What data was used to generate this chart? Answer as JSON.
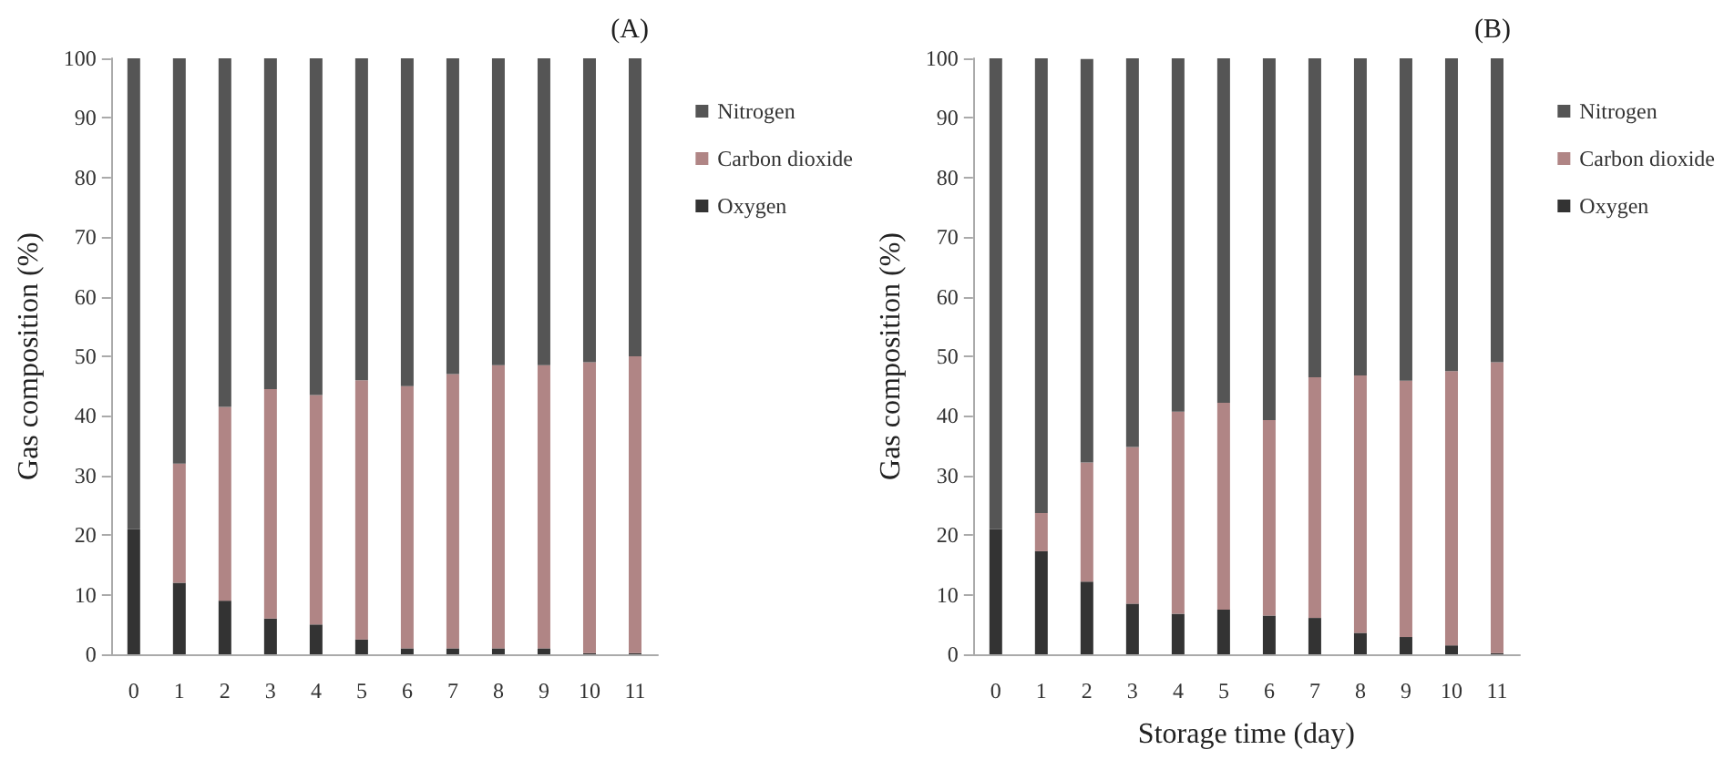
{
  "chart_data": [
    {
      "type": "bar",
      "title": "(A)",
      "ylabel": "Gas composition (%)",
      "categories": [
        "0",
        "1",
        "2",
        "3",
        "4",
        "5",
        "6",
        "7",
        "8",
        "9",
        "10",
        "11"
      ],
      "stacked": true,
      "ylim": [
        0,
        100
      ],
      "yticks": [
        0,
        10,
        20,
        30,
        40,
        50,
        60,
        70,
        80,
        90,
        100
      ],
      "grid": false,
      "legend": "right",
      "series": [
        {
          "name": "Oxygen",
          "color": "#333333",
          "values": [
            21,
            12,
            9,
            6,
            5,
            2.5,
            1,
            1,
            1,
            1,
            0.2,
            0.2
          ]
        },
        {
          "name": "Carbon dioxide",
          "color": "#b08585",
          "values": [
            0,
            20,
            32.5,
            38.5,
            38.5,
            43.5,
            44,
            46,
            47.5,
            47.5,
            48.8,
            49.8
          ]
        },
        {
          "name": "Nitrogen",
          "color": "#555555",
          "values": [
            79,
            68,
            58.5,
            55.5,
            56.5,
            54,
            55,
            53,
            51.5,
            51.5,
            51,
            50
          ]
        }
      ]
    },
    {
      "type": "bar",
      "title": "(B)",
      "xlabel": "Storage time (day)",
      "ylabel": "Gas composition (%)",
      "categories": [
        "0",
        "1",
        "2",
        "3",
        "4",
        "5",
        "6",
        "7",
        "8",
        "9",
        "10",
        "11"
      ],
      "stacked": true,
      "ylim": [
        0,
        100
      ],
      "yticks": [
        0,
        10,
        20,
        30,
        40,
        50,
        60,
        70,
        80,
        90,
        100
      ],
      "grid": false,
      "legend": "right",
      "series": [
        {
          "name": "Oxygen",
          "color": "#333333",
          "values": [
            21,
            17.3,
            12.2,
            8.5,
            6.8,
            7.5,
            6.5,
            6.1,
            3.6,
            2.9,
            1.5,
            0.2
          ]
        },
        {
          "name": "Carbon dioxide",
          "color": "#b08585",
          "values": [
            0,
            6.4,
            20,
            26.3,
            33.9,
            34.7,
            32.8,
            40.4,
            43.2,
            43,
            46,
            48.8
          ]
        },
        {
          "name": "Nitrogen",
          "color": "#555555",
          "values": [
            79,
            76.3,
            67.7,
            65.2,
            59.3,
            57.8,
            60.7,
            53.5,
            53.2,
            54.1,
            52.5,
            51
          ]
        }
      ]
    }
  ]
}
